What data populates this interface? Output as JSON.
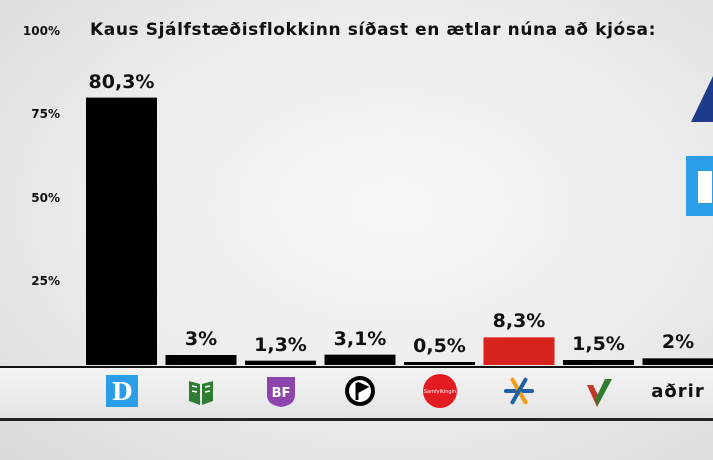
{
  "chart_data": {
    "type": "bar",
    "title": "Kaus Sjálfstæðisflokkinn síðast en ætlar núna að kjósa:",
    "ylim": [
      0,
      100
    ],
    "yticks": [
      "100%",
      "75%",
      "50%",
      "25%"
    ],
    "ytick_values": [
      100,
      75,
      50,
      25
    ],
    "categories": [
      "D",
      "V",
      "BF",
      "P",
      "S",
      "C",
      "F",
      "aðrir"
    ],
    "values": [
      80.3,
      3.0,
      1.3,
      3.1,
      0.5,
      8.3,
      1.5,
      2.0
    ],
    "labels": [
      "80,3%",
      "3%",
      "1,3%",
      "3,1%",
      "0,5%",
      "8,3%",
      "1,5%",
      "2%"
    ],
    "colors": [
      "#000000",
      "#000000",
      "#000000",
      "#000000",
      "#000000",
      "#d7231b",
      "#000000",
      "#000000"
    ],
    "logo_texts": {
      "d": "D",
      "bf": "BF",
      "s": "Samfylkingin",
      "other": "aðrir"
    },
    "logo_colors": {
      "d": "#2a9ee6",
      "v": "#2e7d32",
      "bf": "#8e44ad",
      "s": "#e31b23",
      "c": "#f39c12",
      "c2": "#1f5fa8",
      "f": "#c0392b",
      "f2": "#2e7d32"
    },
    "grid": false,
    "legend": "none"
  }
}
